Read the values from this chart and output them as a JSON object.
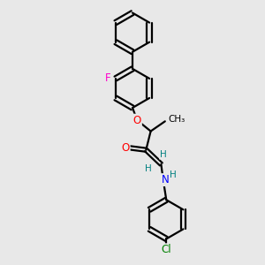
{
  "background_color": "#e8e8e8",
  "bond_color": "#000000",
  "atom_colors": {
    "F": "#ff00cc",
    "O": "#ff0000",
    "N": "#0000ff",
    "H": "#008080",
    "Cl": "#008000",
    "C": "#000000"
  },
  "line_width": 1.6,
  "figsize": [
    3.0,
    3.0
  ],
  "dpi": 100
}
